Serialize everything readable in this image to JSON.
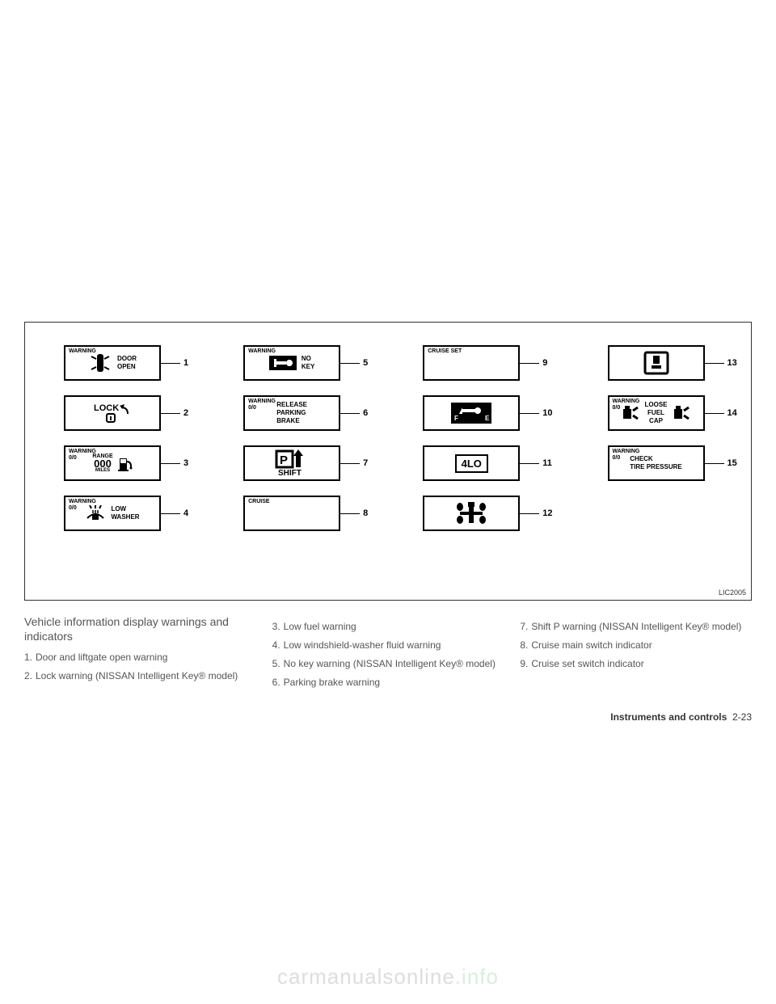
{
  "figure": {
    "label": "LIC2005",
    "border_color": "#333333",
    "panel_border_color": "#000000",
    "panels": [
      {
        "num": "1",
        "corner": "WARNING",
        "right_text": "DOOR\nOPEN",
        "icon": "car-doors"
      },
      {
        "num": "5",
        "corner": "WARNING",
        "right_text": "NO\nKEY",
        "icon": "key-solid"
      },
      {
        "num": "9",
        "corner": "CRUISE SET",
        "icon": "none"
      },
      {
        "num": "13",
        "icon": "fuel-door"
      },
      {
        "num": "2",
        "center_text": "LOCK",
        "icon": "lock-arrow"
      },
      {
        "num": "6",
        "corner": "WARNING",
        "corner_sub": "0/0",
        "right_text": "RELEASE\nPARKING\nBRAKE",
        "icon": "none"
      },
      {
        "num": "10",
        "icon": "fuel-gauge"
      },
      {
        "num": "14",
        "corner": "WARNING",
        "corner_sub": "0/0",
        "center_text": "LOOSE\nFUEL\nCAP",
        "icon": "fuel-cap"
      },
      {
        "num": "3",
        "corner": "WARNING",
        "corner_sub": "0/0",
        "center_text_small": "RANGE",
        "big_text": "000",
        "under_text": "MILES",
        "icon": "pump-right"
      },
      {
        "num": "7",
        "icon": "p-shift"
      },
      {
        "num": "11",
        "boxed_text": "4LO"
      },
      {
        "num": "15",
        "corner": "WARNING",
        "corner_sub": "0/0",
        "right_text": "CHECK\nTIRE PRESSURE",
        "icon": "none"
      },
      {
        "num": "4",
        "corner": "WARNING",
        "corner_sub": "0/0",
        "right_text": "LOW\nWASHER",
        "icon": "washer"
      },
      {
        "num": "8",
        "corner": "CRUISE",
        "icon": "none"
      },
      {
        "num": "12",
        "icon": "awd"
      },
      {
        "num": "",
        "blank": true
      }
    ]
  },
  "text": {
    "subhead": "Vehicle information display warnings and indicators",
    "col1": [
      "Door and liftgate open warning",
      "Lock warning (NISSAN Intelligent Key® model)"
    ],
    "col2": [
      "Low fuel warning",
      "Low windshield-washer fluid warning",
      "No key warning (NISSAN Intelligent Key® model)",
      "Parking brake warning"
    ],
    "col3": [
      "Shift P warning (NISSAN Intelligent Key® model)",
      "Cruise main switch indicator",
      "Cruise set switch indicator"
    ],
    "col1_start": 1,
    "col2_start": 3,
    "col3_start": 7
  },
  "footer": {
    "label": "Instruments and controls",
    "page": "2-23"
  },
  "watermark": {
    "text1": "carmanualsonline",
    "text2": ".info"
  },
  "colors": {
    "text": "#555555",
    "watermark_gray": "#dddddd",
    "watermark_green": "#d8eedd"
  }
}
